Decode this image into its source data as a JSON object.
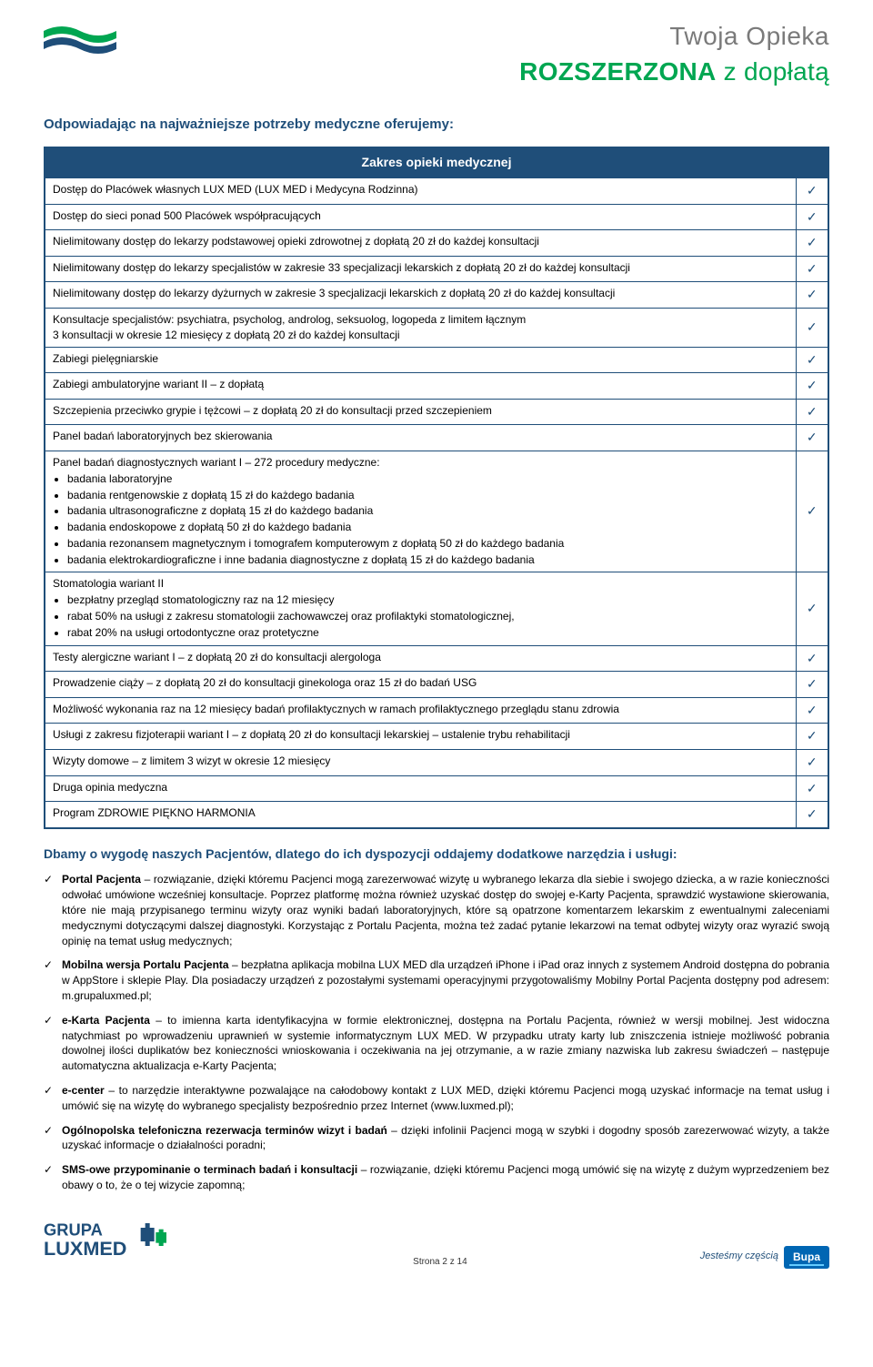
{
  "header": {
    "line1": "Twoja Opieka",
    "line2_main": "ROZSZERZONA",
    "line2_suffix": " z dopłatą"
  },
  "intro_heading": "Odpowiadając na najważniejsze potrzeby medyczne oferujemy:",
  "table_header": "Zakres opieki medycznej",
  "check_mark": "✓",
  "rows": [
    {
      "text": "Dostęp do Placówek własnych LUX MED (LUX MED i Medycyna Rodzinna)",
      "check": true
    },
    {
      "text": "Dostęp do sieci ponad 500 Placówek współpracujących",
      "check": true
    },
    {
      "text": "Nielimitowany dostęp do lekarzy podstawowej opieki zdrowotnej z dopłatą 20 zł do każdej konsultacji",
      "check": true
    },
    {
      "text": "Nielimitowany dostęp do lekarzy specjalistów w zakresie 33 specjalizacji lekarskich z dopłatą 20 zł do każdej konsultacji",
      "check": true
    },
    {
      "text": "Nielimitowany dostęp do lekarzy dyżurnych w zakresie 3 specjalizacji lekarskich z dopłatą 20 zł do każdej konsultacji",
      "check": true
    },
    {
      "text": "Konsultacje specjalistów: psychiatra, psycholog, androlog, seksuolog, logopeda z limitem łącznym\n3 konsultacji w okresie 12 miesięcy z dopłatą 20 zł do każdej konsultacji",
      "check": true
    },
    {
      "text": "Zabiegi pielęgniarskie",
      "check": true
    },
    {
      "text": "Zabiegi ambulatoryjne wariant II – z dopłatą",
      "check": true
    },
    {
      "text": "Szczepienia przeciwko grypie i tężcowi – z dopłatą 20 zł do konsultacji przed szczepieniem",
      "check": true
    },
    {
      "text": "Panel badań laboratoryjnych bez skierowania",
      "check": true
    },
    {
      "text": "Panel badań diagnostycznych wariant I – 272 procedury medyczne:",
      "bullets": [
        "badania laboratoryjne",
        "badania rentgenowskie z dopłatą 15 zł do każdego badania",
        "badania ultrasonograficzne z dopłatą 15 zł do każdego badania",
        "badania endoskopowe z dopłatą 50 zł do każdego badania",
        "badania rezonansem magnetycznym i tomografem komputerowym z dopłatą 50 zł do każdego badania",
        "badania elektrokardiograficzne i inne badania diagnostyczne z dopłatą 15 zł do każdego badania"
      ],
      "check": true
    },
    {
      "text": "Stomatologia wariant II",
      "bullets": [
        "bezpłatny przegląd stomatologiczny raz na 12 miesięcy",
        "rabat 50% na usługi z zakresu stomatologii zachowawczej oraz profilaktyki stomatologicznej,",
        "rabat 20% na usługi ortodontyczne oraz protetyczne"
      ],
      "check": true
    },
    {
      "text": "Testy alergiczne wariant I – z dopłatą 20 zł do konsultacji alergologa",
      "check": true
    },
    {
      "text": "Prowadzenie ciąży – z dopłatą 20 zł do konsultacji ginekologa oraz 15 zł do badań USG",
      "check": true
    },
    {
      "text": "Możliwość wykonania raz na 12 miesięcy badań profilaktycznych w ramach profilaktycznego przeglądu stanu zdrowia",
      "check": true
    },
    {
      "text": "Usługi z zakresu fizjoterapii wariant I – z dopłatą 20 zł do konsultacji lekarskiej – ustalenie trybu rehabilitacji",
      "check": true
    },
    {
      "text": "Wizyty domowe – z limitem 3 wizyt w okresie 12 miesięcy",
      "check": true
    },
    {
      "text": "Druga opinia medyczna",
      "check": true
    },
    {
      "text": "Program ZDROWIE PIĘKNO HARMONIA",
      "check": true
    }
  ],
  "tools_heading": "Dbamy o wygodę naszych Pacjentów, dlatego do ich dyspozycji oddajemy dodatkowe narzędzia i usługi:",
  "tools": [
    {
      "lead": "Portal Pacjenta",
      "body": " – rozwiązanie, dzięki któremu Pacjenci mogą zarezerwować wizytę u wybranego lekarza dla siebie i swojego dziecka, a w razie konieczności odwołać umówione wcześniej konsultacje. Poprzez platformę można również uzyskać dostęp do swojej e-Karty Pacjenta, sprawdzić wystawione skierowania, które nie mają przypisanego terminu wizyty oraz wyniki badań laboratoryjnych, które są opatrzone komentarzem lekarskim z ewentualnymi zaleceniami medycznymi dotyczącymi dalszej diagnostyki. Korzystając z Portalu Pacjenta, można też zadać pytanie lekarzowi na temat odbytej wizyty oraz wyrazić swoją opinię na temat usług medycznych;"
    },
    {
      "lead": "Mobilna wersja Portalu Pacjenta",
      "body": " – bezpłatna aplikacja mobilna LUX MED dla urządzeń iPhone i iPad oraz innych z systemem Android dostępna do pobrania w AppStore i sklepie Play. Dla posiadaczy urządzeń z pozostałymi systemami operacyjnymi przygotowaliśmy Mobilny Portal Pacjenta dostępny pod adresem: m.grupaluxmed.pl;"
    },
    {
      "lead": "e-Karta Pacjenta",
      "body": " – to imienna karta identyfikacyjna w formie elektronicznej, dostępna na Portalu Pacjenta, również w wersji mobilnej. Jest widoczna natychmiast po wprowadzeniu uprawnień w systemie informatycznym LUX MED. W przypadku utraty karty lub zniszczenia istnieje możliwość pobrania dowolnej ilości duplikatów bez konieczności wnioskowania i oczekiwania na jej otrzymanie, a w razie zmiany nazwiska lub zakresu świadczeń – następuje automatyczna aktualizacja e-Karty Pacjenta;"
    },
    {
      "lead": "e-center",
      "body": " – to narzędzie interaktywne pozwalające na całodobowy kontakt z LUX MED, dzięki któremu Pacjenci mogą uzyskać informacje na temat usług i umówić się na wizytę do wybranego specjalisty bezpośrednio przez Internet (www.luxmed.pl);"
    },
    {
      "lead": "Ogólnopolska telefoniczna rezerwacja terminów wizyt i badań",
      "body": " – dzięki infolinii Pacjenci mogą w szybki i dogodny sposób zarezerwować wizyty, a także uzyskać informacje o działalności poradni;"
    },
    {
      "lead": "SMS-owe przypominanie o terminach badań i konsultacji",
      "body": " – rozwiązanie, dzięki któremu Pacjenci mogą umówić się na wizytę z dużym wyprzedzeniem bez obawy o to, że o tej wizycie zapomną;"
    }
  ],
  "footer": {
    "grupa_line1": "GRUPA",
    "grupa_line2": "LUXMED",
    "page_number": "Strona 2 z 14",
    "bupa_label": "Jesteśmy częścią",
    "bupa_name": "Bupa"
  },
  "colors": {
    "brand_blue": "#1f4e79",
    "brand_green": "#00a651",
    "grey": "#7a7a7a",
    "bupa_blue": "#0066b3"
  }
}
